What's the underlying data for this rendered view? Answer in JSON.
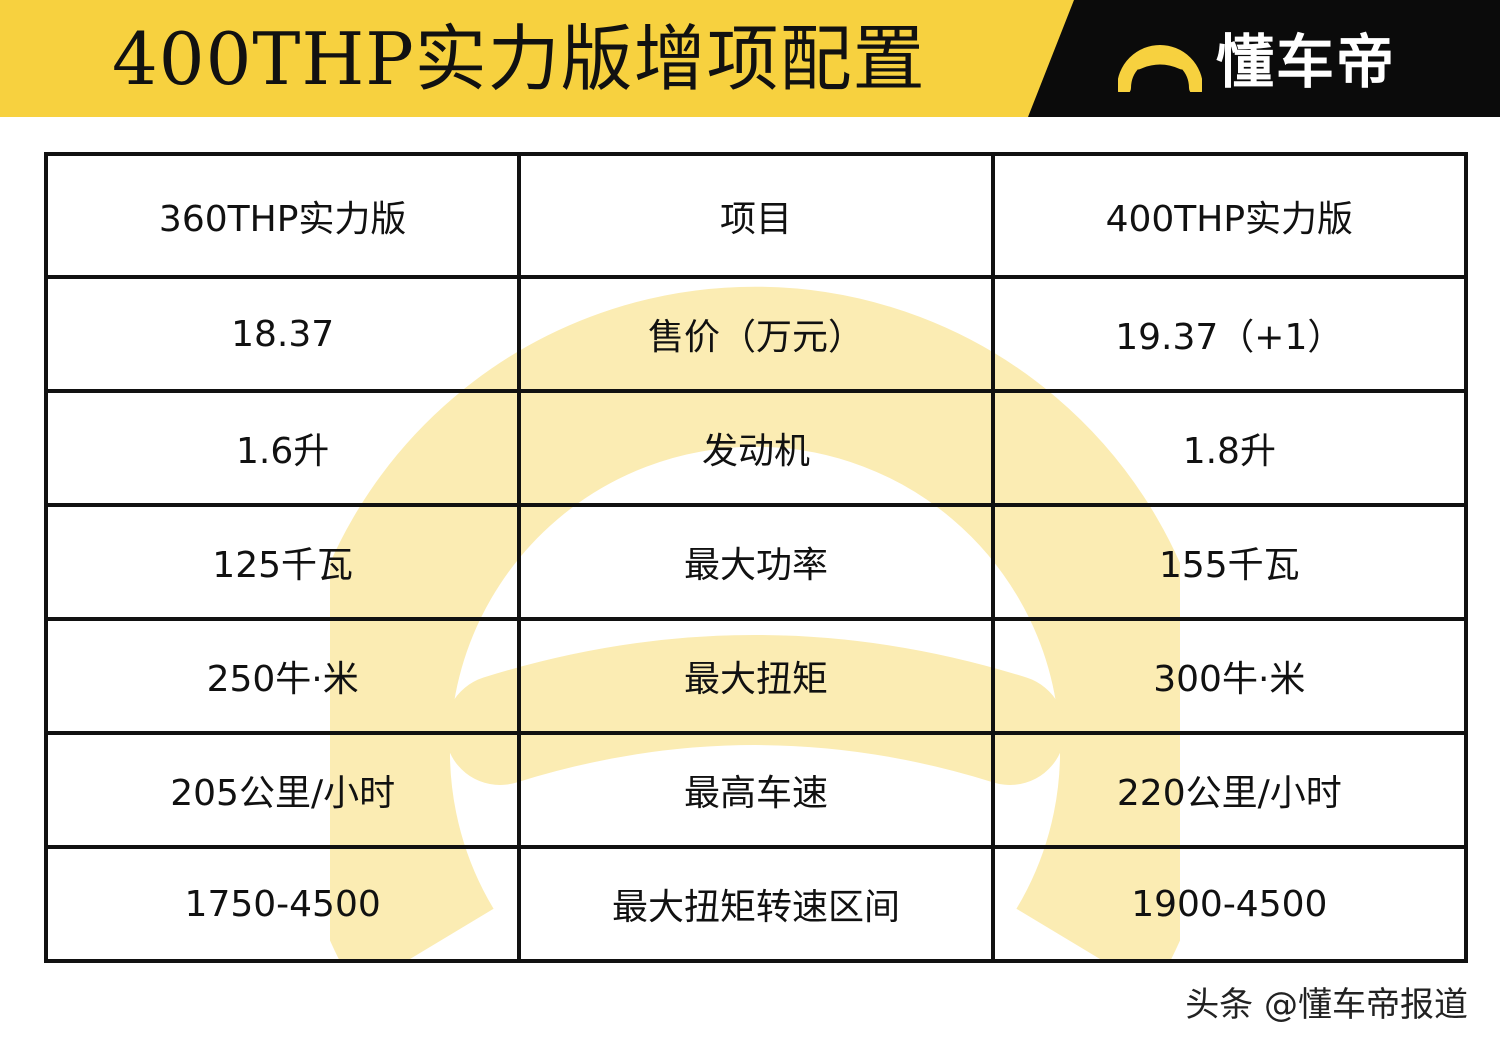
{
  "header": {
    "title": "400THP实力版增项配置",
    "brand": "懂车帝",
    "colors": {
      "banner": "#f7d13f",
      "brand_panel": "#0b0b0b",
      "brand_text": "#ffffff"
    }
  },
  "table": {
    "columns": [
      "360THP实力版",
      "项目",
      "400THP实力版"
    ],
    "rows": [
      [
        "18.37",
        "售价（万元）",
        "19.37（+1）"
      ],
      [
        "1.6升",
        "发动机",
        "1.8升"
      ],
      [
        "125千瓦",
        "最大功率",
        "155千瓦"
      ],
      [
        "250牛·米",
        "最大扭矩",
        "300牛·米"
      ],
      [
        "205公里/小时",
        "最高车速",
        "220公里/小时"
      ],
      [
        "1750-4500",
        "最大扭矩转速区间",
        "1900-4500"
      ]
    ]
  },
  "watermark": {
    "icon": "dongchedi-logo-icon",
    "color": "#f7d13f"
  },
  "footer": {
    "credit": "头条 @懂车帝报道"
  }
}
